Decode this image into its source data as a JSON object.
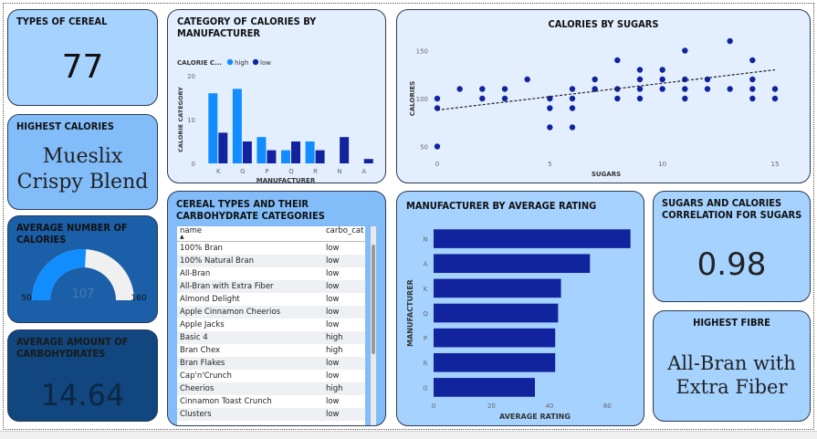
{
  "kpi": {
    "types": {
      "title": "TYPES OF CEREAL",
      "value": "77"
    },
    "highest_calories": {
      "title": "HIGHEST CALORIES",
      "value": "Mueslix Crispy Blend"
    },
    "avg_calories": {
      "title": "AVERAGE NUMBER OF CALORIES",
      "value": 107,
      "min": "50",
      "max": "160",
      "value_label": "107"
    },
    "avg_carbs": {
      "title": "AVERAGE AMOUNT OF CARBOHYDRATES",
      "value": "14.64"
    },
    "correlation": {
      "title": "SUGARS AND CALORIES CORRELATION FOR SUGARS",
      "value": "0.98"
    },
    "highest_fibre": {
      "title": "HIGHEST FIBRE",
      "value": "All-Bran with Extra Fiber"
    }
  },
  "table": {
    "title": "CEREAL TYPES AND THEIR CARBOHYDRATE CATEGORIES",
    "columns": [
      "name",
      "carbo_cat"
    ],
    "rows": [
      [
        "100% Bran",
        "low"
      ],
      [
        "100% Natural Bran",
        "low"
      ],
      [
        "All-Bran",
        "low"
      ],
      [
        "All-Bran with Extra Fiber",
        "low"
      ],
      [
        "Almond Delight",
        "low"
      ],
      [
        "Apple Cinnamon Cheerios",
        "low"
      ],
      [
        "Apple Jacks",
        "low"
      ],
      [
        "Basic 4",
        "high"
      ],
      [
        "Bran Chex",
        "high"
      ],
      [
        "Bran Flakes",
        "low"
      ],
      [
        "Cap'n'Crunch",
        "low"
      ],
      [
        "Cheerios",
        "high"
      ],
      [
        "Cinnamon Toast Crunch",
        "low"
      ],
      [
        "Clusters",
        "low"
      ]
    ]
  },
  "chart_data": [
    {
      "type": "bar",
      "title": "CATEGORY OF CALORIES BY MANUFACTURER",
      "legend_title": "CALORIE C...",
      "xlabel": "MANUFACTURER",
      "ylabel": "CALORIE CATEGORY",
      "categories": [
        "K",
        "G",
        "P",
        "Q",
        "R",
        "N",
        "A"
      ],
      "series": [
        {
          "name": "high",
          "values": [
            16,
            17,
            6,
            3,
            5,
            0,
            0
          ],
          "color": "#118dff"
        },
        {
          "name": "low",
          "values": [
            7,
            5,
            3,
            5,
            3,
            6,
            1
          ],
          "color": "#12239e"
        }
      ],
      "ylim": [
        0,
        20
      ],
      "yticks": [
        0,
        10,
        20
      ],
      "legend_position": "top-left"
    },
    {
      "type": "scatter",
      "title": "CALORIES BY SUGARS",
      "xlabel": "SUGARS",
      "ylabel": "CALORIES",
      "xlim": [
        0,
        15
      ],
      "ylim": [
        40,
        160
      ],
      "xticks": [
        0,
        5,
        10,
        15
      ],
      "yticks": [
        50,
        100,
        150
      ],
      "points": [
        [
          0,
          50
        ],
        [
          0,
          90
        ],
        [
          0,
          100
        ],
        [
          1,
          110
        ],
        [
          2,
          100
        ],
        [
          2,
          110
        ],
        [
          3,
          100
        ],
        [
          3,
          110
        ],
        [
          4,
          120
        ],
        [
          5,
          70
        ],
        [
          5,
          90
        ],
        [
          5,
          100
        ],
        [
          6,
          70
        ],
        [
          6,
          90
        ],
        [
          6,
          100
        ],
        [
          6,
          110
        ],
        [
          7,
          110
        ],
        [
          7,
          120
        ],
        [
          8,
          100
        ],
        [
          8,
          110
        ],
        [
          8,
          140
        ],
        [
          9,
          100
        ],
        [
          9,
          110
        ],
        [
          9,
          120
        ],
        [
          9,
          130
        ],
        [
          10,
          110
        ],
        [
          10,
          120
        ],
        [
          10,
          130
        ],
        [
          11,
          100
        ],
        [
          11,
          110
        ],
        [
          11,
          120
        ],
        [
          11,
          150
        ],
        [
          12,
          110
        ],
        [
          12,
          120
        ],
        [
          13,
          110
        ],
        [
          13,
          160
        ],
        [
          14,
          100
        ],
        [
          14,
          110
        ],
        [
          14,
          120
        ],
        [
          14,
          140
        ],
        [
          15,
          100
        ],
        [
          15,
          110
        ]
      ],
      "trend": [
        [
          0,
          88
        ],
        [
          15,
          130
        ]
      ],
      "color": "#12239e"
    },
    {
      "type": "bar",
      "orientation": "horizontal",
      "title": "MANUFACTURER BY AVERAGE RATING",
      "xlabel": "AVERAGE RATING",
      "ylabel": "MANUFACTURER",
      "categories": [
        "N",
        "A",
        "K",
        "Q",
        "P",
        "R",
        "G"
      ],
      "values": [
        68,
        54,
        44,
        43,
        42,
        42,
        35
      ],
      "xlim": [
        0,
        70
      ],
      "xticks": [
        0,
        20,
        40,
        60
      ],
      "color": "#12239e"
    }
  ],
  "colors": {
    "card_light": "#a6d2ff",
    "card_mid": "#82bdfa",
    "card_dark": "#1b5fa8",
    "card_navy": "#11467e",
    "chart_bg": "#e3efff"
  }
}
